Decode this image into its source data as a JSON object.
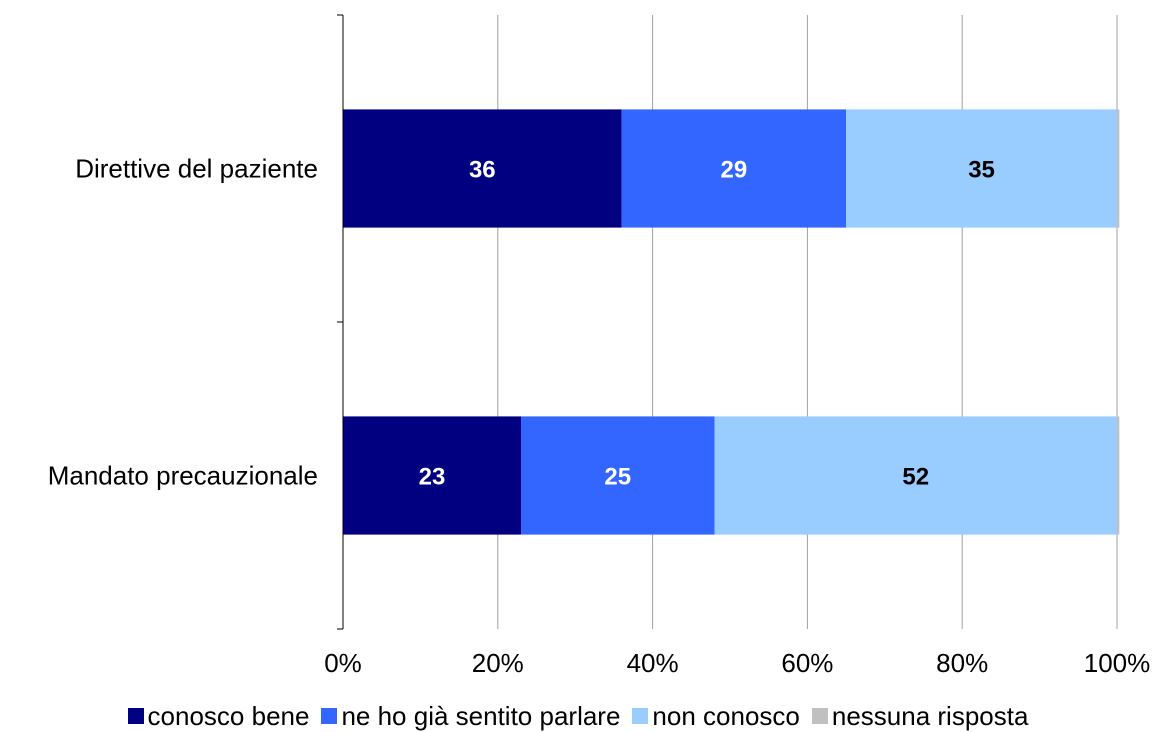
{
  "chart_data": {
    "type": "bar",
    "orientation": "horizontal",
    "stacked": true,
    "categories": [
      "Direttive del paziente",
      "Mandato precauzionale"
    ],
    "series": [
      {
        "name": "conosco bene",
        "color": "#000080",
        "label_color": "#ffffff",
        "values": [
          36,
          23
        ]
      },
      {
        "name": "ne ho già sentito parlare",
        "color": "#3366ff",
        "label_color": "#ffffff",
        "values": [
          29,
          25
        ]
      },
      {
        "name": "non conosco",
        "color": "#99ccff",
        "label_color": "#000000",
        "values": [
          35,
          52
        ]
      },
      {
        "name": "nessuna risposta",
        "color": "#c0c0c0",
        "label_color": "#000000",
        "values": [
          0.3,
          0.3
        ]
      }
    ],
    "xlim": [
      0,
      100
    ],
    "xticks": [
      "0%",
      "20%",
      "40%",
      "60%",
      "80%",
      "100%"
    ],
    "grid": true,
    "legend_position": "bottom"
  }
}
